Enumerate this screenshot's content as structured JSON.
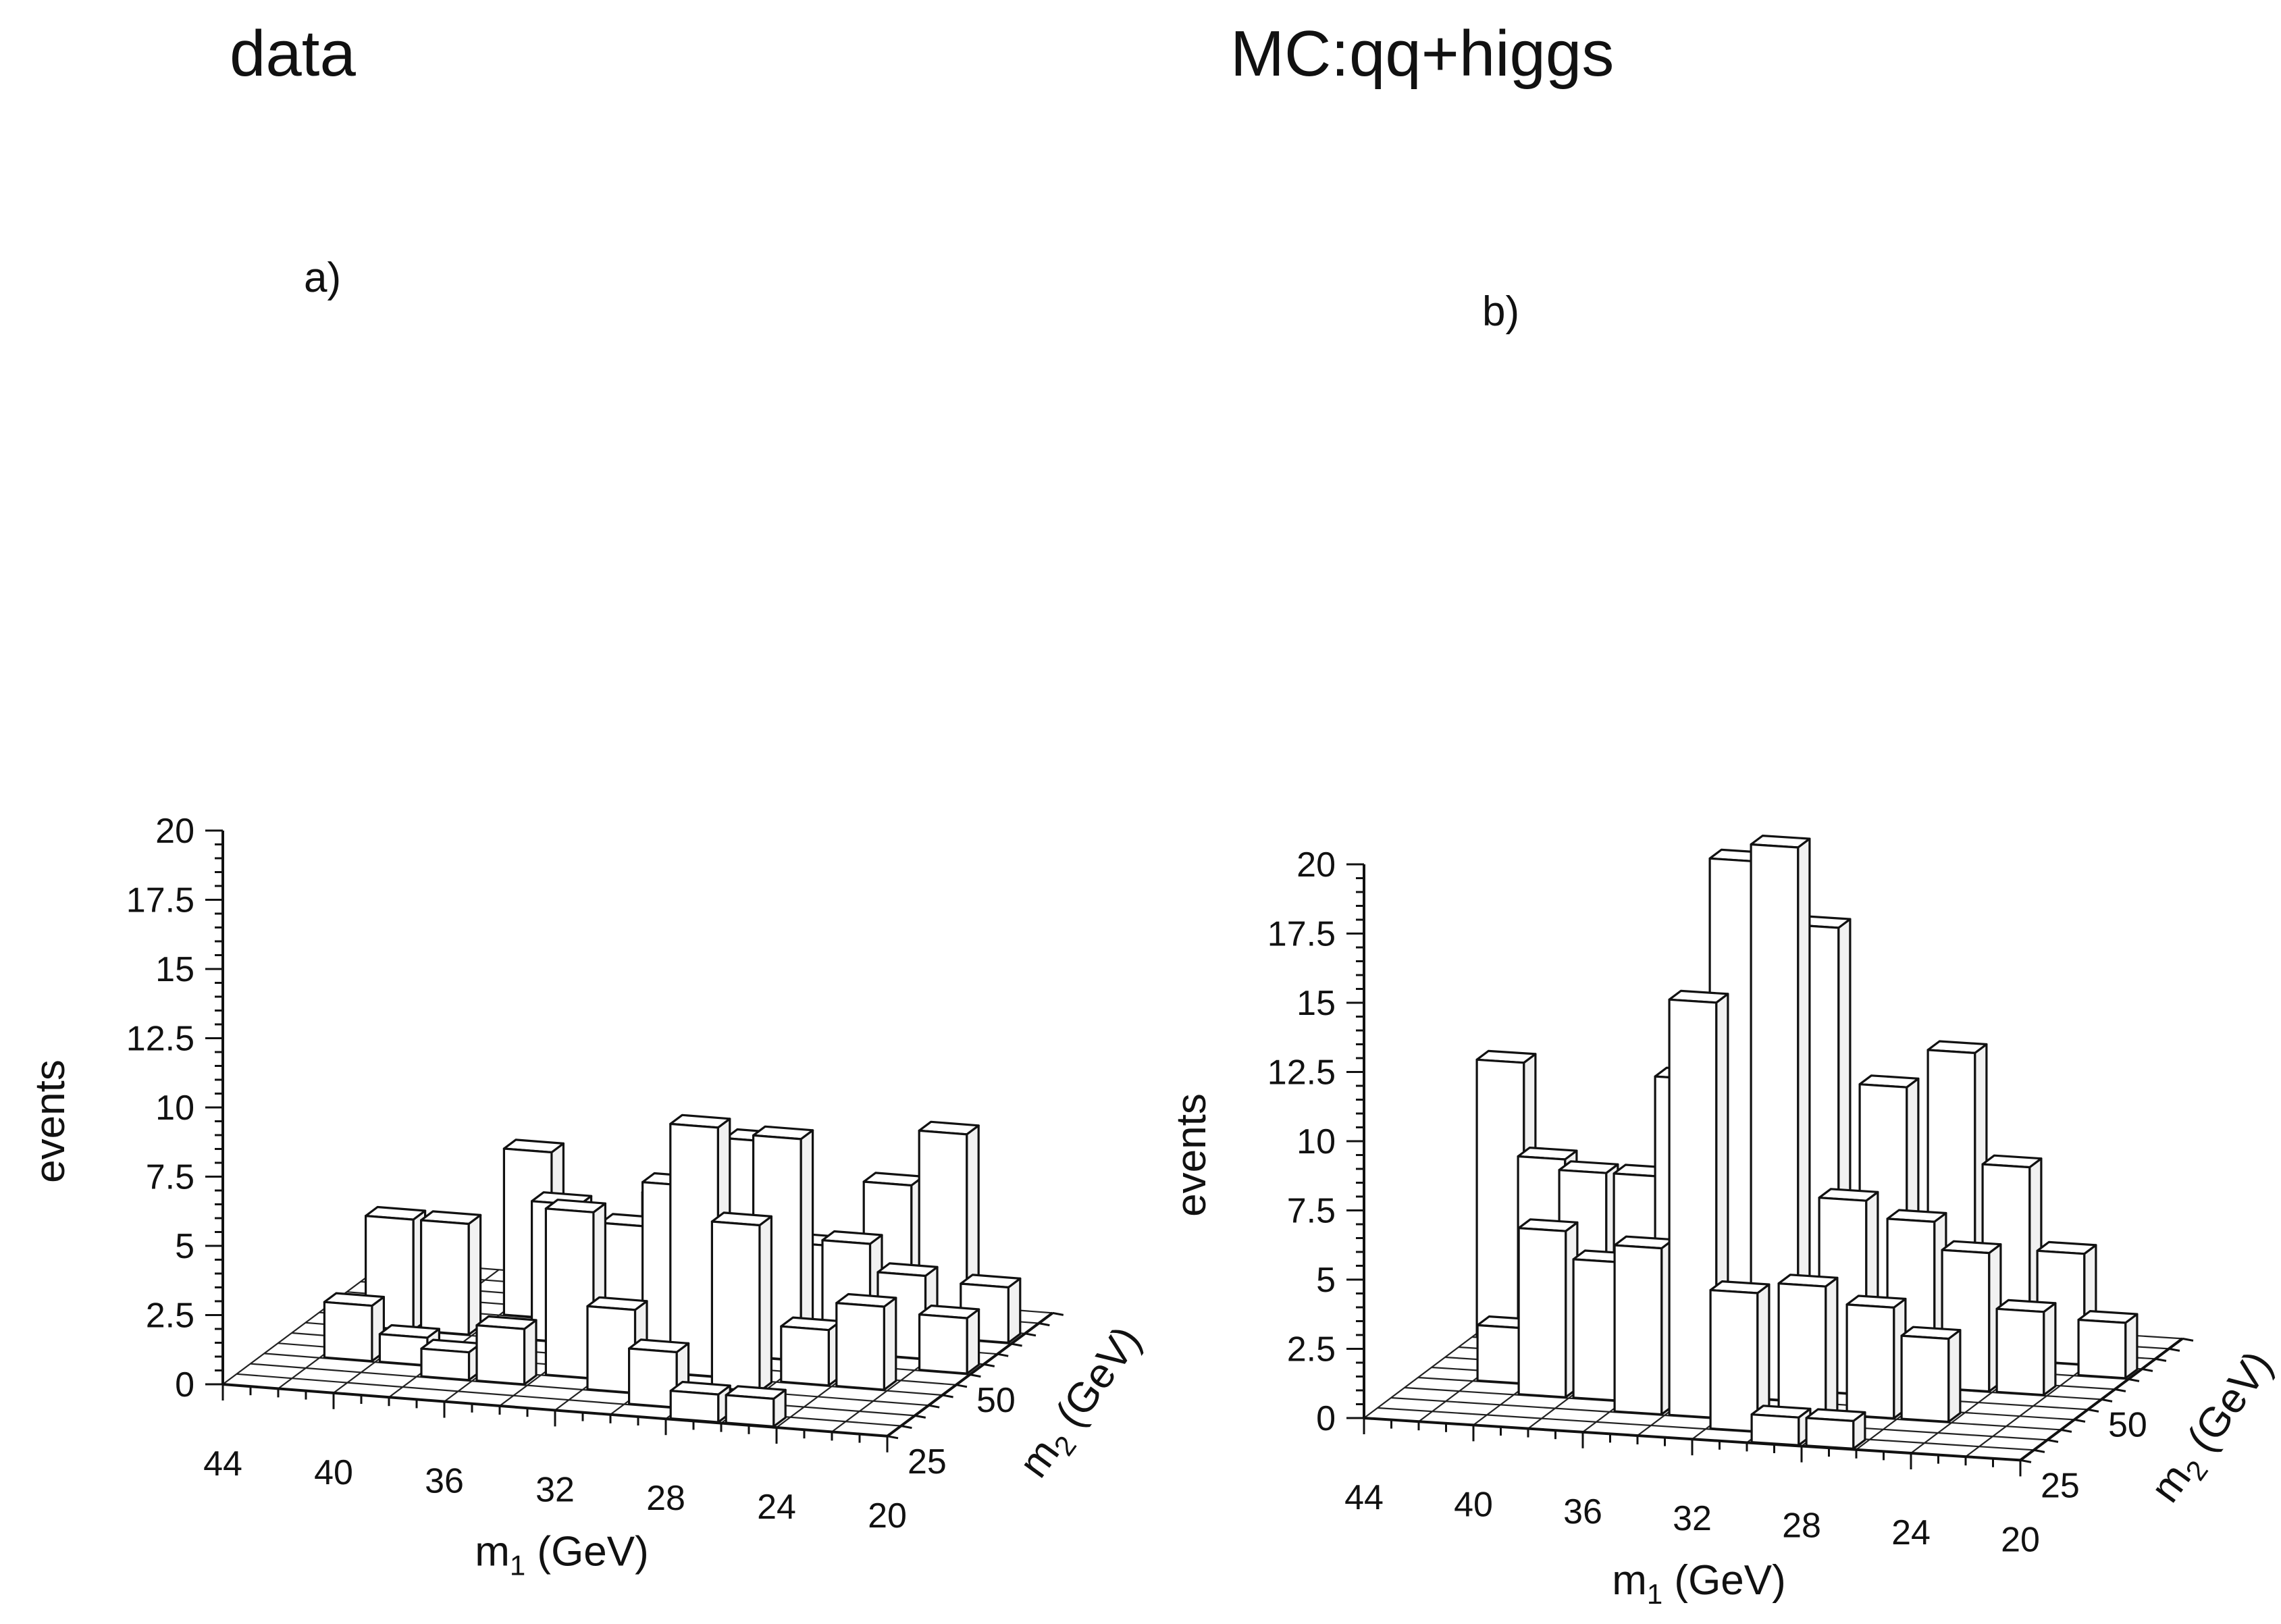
{
  "chart_data": [
    {
      "type": "bar3d",
      "title": "data",
      "panel_label": "a)",
      "xlabel_main": "m",
      "xlabel_sub": "1",
      "xlabel_unit": " (GeV)",
      "ylabel_main": "m",
      "ylabel_sub": "2",
      "ylabel_unit": " (GeV)",
      "zlabel": "events",
      "x_ticks": [
        "44",
        "40",
        "36",
        "32",
        "28",
        "24",
        "20"
      ],
      "y_ticks": [
        "25",
        "50"
      ],
      "z_ticks": [
        "0",
        "2.5",
        "5",
        "7.5",
        "10",
        "12.5",
        "15",
        "17.5",
        "20"
      ],
      "zlim": [
        0,
        20
      ],
      "x_bins": 12,
      "y_bins": 12,
      "bars": [
        {
          "x": 1,
          "y": 3,
          "z": 2
        },
        {
          "x": 1,
          "y": 6,
          "z": 4
        },
        {
          "x": 2,
          "y": 3,
          "z": 1
        },
        {
          "x": 2,
          "y": 6,
          "z": 4
        },
        {
          "x": 3,
          "y": 2,
          "z": 1
        },
        {
          "x": 3,
          "y": 8,
          "z": 6
        },
        {
          "x": 4,
          "y": 2,
          "z": 2
        },
        {
          "x": 4,
          "y": 6,
          "z": 5
        },
        {
          "x": 4,
          "y": 9,
          "z": 3
        },
        {
          "x": 5,
          "y": 3,
          "z": 6
        },
        {
          "x": 5,
          "y": 7,
          "z": 4
        },
        {
          "x": 5,
          "y": 10,
          "z": 4
        },
        {
          "x": 6,
          "y": 2,
          "z": 3
        },
        {
          "x": 6,
          "y": 6,
          "z": 6
        },
        {
          "x": 6,
          "y": 10,
          "z": 6
        },
        {
          "x": 7,
          "y": 1,
          "z": 2
        },
        {
          "x": 7,
          "y": 4,
          "z": 9
        },
        {
          "x": 7,
          "y": 8,
          "z": 7
        },
        {
          "x": 8,
          "y": 0,
          "z": 1
        },
        {
          "x": 8,
          "y": 3,
          "z": 6
        },
        {
          "x": 8,
          "y": 6,
          "z": 8
        },
        {
          "x": 8,
          "y": 9,
          "z": 3
        },
        {
          "x": 9,
          "y": 0,
          "z": 1
        },
        {
          "x": 9,
          "y": 4,
          "z": 2
        },
        {
          "x": 9,
          "y": 7,
          "z": 4
        },
        {
          "x": 9,
          "y": 10,
          "z": 5
        },
        {
          "x": 10,
          "y": 4,
          "z": 3
        },
        {
          "x": 10,
          "y": 7,
          "z": 3
        },
        {
          "x": 10,
          "y": 10,
          "z": 7
        },
        {
          "x": 11,
          "y": 6,
          "z": 2
        },
        {
          "x": 11,
          "y": 9,
          "z": 2
        }
      ]
    },
    {
      "type": "bar3d",
      "title": "MC:qq+higgs",
      "panel_label": "b)",
      "xlabel_main": "m",
      "xlabel_sub": "1",
      "xlabel_unit": " (GeV)",
      "ylabel_main": "m",
      "ylabel_sub": "2",
      "ylabel_unit": " (GeV)",
      "zlabel": "events",
      "x_ticks": [
        "44",
        "40",
        "36",
        "32",
        "28",
        "24",
        "20"
      ],
      "y_ticks": [
        "25",
        "50"
      ],
      "z_ticks": [
        "0",
        "2.5",
        "5",
        "7.5",
        "10",
        "12.5",
        "15",
        "17.5",
        "20"
      ],
      "zlim": [
        0,
        20
      ],
      "x_bins": 12,
      "y_bins": 12,
      "bars": [
        {
          "x": 0,
          "y": 8,
          "z": 10
        },
        {
          "x": 1,
          "y": 4,
          "z": 2
        },
        {
          "x": 1,
          "y": 7,
          "z": 7
        },
        {
          "x": 2,
          "y": 3,
          "z": 6
        },
        {
          "x": 2,
          "y": 6,
          "z": 7
        },
        {
          "x": 2,
          "y": 9,
          "z": 4
        },
        {
          "x": 3,
          "y": 3,
          "z": 5
        },
        {
          "x": 3,
          "y": 6,
          "z": 7
        },
        {
          "x": 3,
          "y": 9,
          "z": 4
        },
        {
          "x": 4,
          "y": 2,
          "z": 6
        },
        {
          "x": 4,
          "y": 5,
          "z": 11
        },
        {
          "x": 4,
          "y": 8,
          "z": 12
        },
        {
          "x": 5,
          "y": 2,
          "z": 15
        },
        {
          "x": 5,
          "y": 5,
          "z": 19
        },
        {
          "x": 5,
          "y": 8,
          "z": 18
        },
        {
          "x": 6,
          "y": 1,
          "z": 5
        },
        {
          "x": 6,
          "y": 4,
          "z": 20
        },
        {
          "x": 6,
          "y": 7,
          "z": 16
        },
        {
          "x": 7,
          "y": 0,
          "z": 1
        },
        {
          "x": 7,
          "y": 2,
          "z": 5
        },
        {
          "x": 7,
          "y": 5,
          "z": 7
        },
        {
          "x": 7,
          "y": 8,
          "z": 10
        },
        {
          "x": 8,
          "y": 0,
          "z": 1
        },
        {
          "x": 8,
          "y": 3,
          "z": 4
        },
        {
          "x": 8,
          "y": 6,
          "z": 6
        },
        {
          "x": 8,
          "y": 9,
          "z": 11
        },
        {
          "x": 9,
          "y": 3,
          "z": 3
        },
        {
          "x": 9,
          "y": 6,
          "z": 5
        },
        {
          "x": 9,
          "y": 9,
          "z": 7
        },
        {
          "x": 10,
          "y": 6,
          "z": 3
        },
        {
          "x": 10,
          "y": 9,
          "z": 4
        },
        {
          "x": 11,
          "y": 8,
          "z": 2
        }
      ]
    }
  ]
}
